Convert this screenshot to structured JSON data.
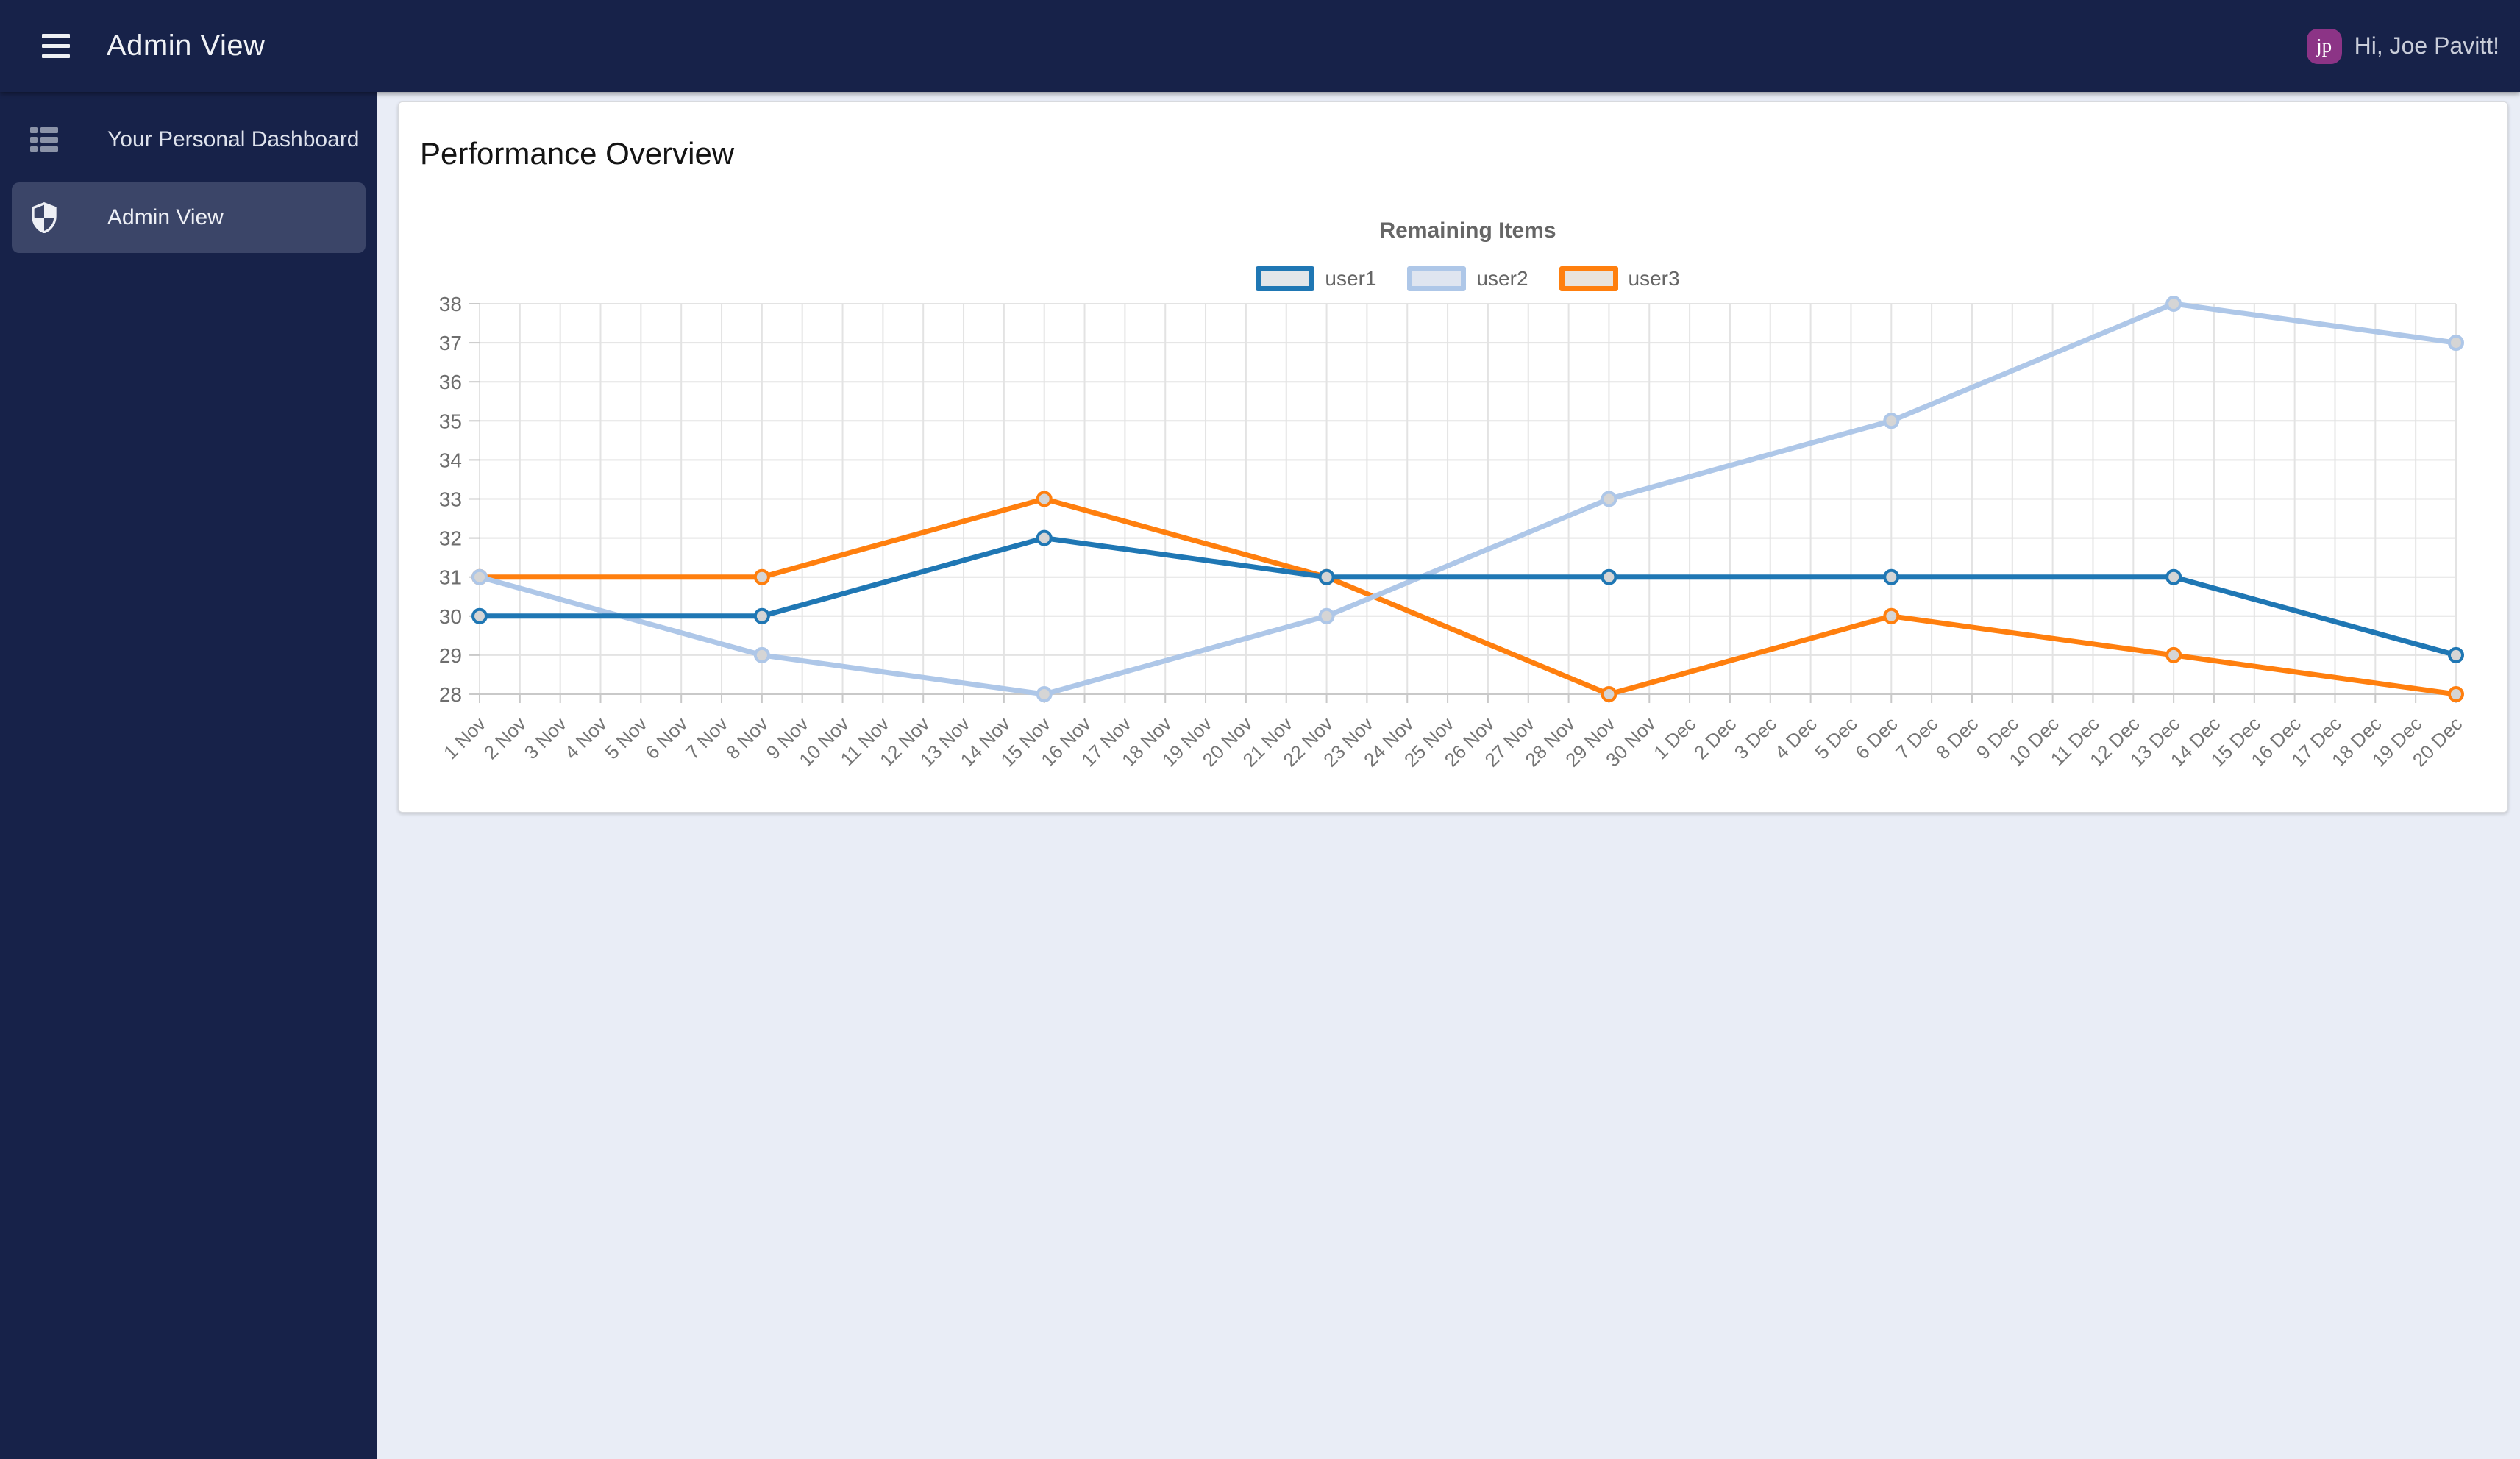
{
  "header": {
    "title": "Admin View",
    "greeting": "Hi, Joe Pavitt!",
    "avatar_initials": "jp",
    "avatar_color": "#8c3486",
    "bar_color": "#172249",
    "menu_icon": "hamburger-menu-icon"
  },
  "sidebar": {
    "items": [
      {
        "label": "Your Personal Dashboard",
        "icon": "list-icon",
        "active": false
      },
      {
        "label": "Admin View",
        "icon": "shield-icon",
        "active": true
      }
    ]
  },
  "main": {
    "card_title": "Performance Overview"
  },
  "chart_data": {
    "type": "line",
    "title": "Remaining Items",
    "xlabel": "",
    "ylabel": "",
    "ylim": [
      28,
      38
    ],
    "y_ticks": [
      28,
      29,
      30,
      31,
      32,
      33,
      34,
      35,
      36,
      37,
      38
    ],
    "grid": true,
    "legend_position": "top-center",
    "x_labels": [
      "1 Nov",
      "2 Nov",
      "3 Nov",
      "4 Nov",
      "5 Nov",
      "6 Nov",
      "7 Nov",
      "8 Nov",
      "9 Nov",
      "10 Nov",
      "11 Nov",
      "12 Nov",
      "13 Nov",
      "14 Nov",
      "15 Nov",
      "16 Nov",
      "17 Nov",
      "18 Nov",
      "19 Nov",
      "20 Nov",
      "21 Nov",
      "22 Nov",
      "23 Nov",
      "24 Nov",
      "25 Nov",
      "26 Nov",
      "27 Nov",
      "28 Nov",
      "29 Nov",
      "30 Nov",
      "1 Dec",
      "2 Dec",
      "3 Dec",
      "4 Dec",
      "5 Dec",
      "6 Dec",
      "7 Dec",
      "8 Dec",
      "9 Dec",
      "10 Dec",
      "11 Dec",
      "12 Dec",
      "13 Dec",
      "14 Dec",
      "15 Dec",
      "16 Dec",
      "17 Dec",
      "18 Dec",
      "19 Dec",
      "20 Dec"
    ],
    "point_days": [
      0,
      7,
      14,
      21,
      28,
      35,
      42,
      49
    ],
    "point_dates": [
      "1 Nov",
      "8 Nov",
      "15 Nov",
      "22 Nov",
      "29 Nov",
      "6 Dec",
      "13 Dec",
      "20 Dec"
    ],
    "marker_fill": "#d5d5d5",
    "grid_color": "#e3e3e3",
    "axis_color": "#c9c9c9",
    "tick_label_color": "#6d6d6d",
    "series": [
      {
        "name": "user1",
        "color": "#1f77b4",
        "legend_fill": "#e3e6e9",
        "values": [
          30,
          30,
          32,
          31,
          31,
          31,
          31,
          29
        ]
      },
      {
        "name": "user2",
        "color": "#aec7e8",
        "legend_fill": "#dfe5f0",
        "values": [
          31,
          29,
          28,
          30,
          33,
          35,
          38,
          37
        ]
      },
      {
        "name": "user3",
        "color": "#ff7f0e",
        "legend_fill": "#e9e3dc",
        "values": [
          31,
          31,
          33,
          31,
          28,
          30,
          29,
          28
        ]
      }
    ]
  }
}
